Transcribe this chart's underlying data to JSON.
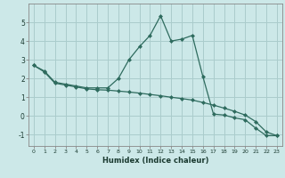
{
  "xlabel": "Humidex (Indice chaleur)",
  "background_color": "#cce8e8",
  "line_color": "#2e6b5e",
  "grid_color": "#aacccc",
  "xlim": [
    -0.5,
    23.5
  ],
  "ylim": [
    -1.6,
    6.0
  ],
  "yticks": [
    -1,
    0,
    1,
    2,
    3,
    4,
    5
  ],
  "xticks": [
    0,
    1,
    2,
    3,
    4,
    5,
    6,
    7,
    8,
    9,
    10,
    11,
    12,
    13,
    14,
    15,
    16,
    17,
    18,
    19,
    20,
    21,
    22,
    23
  ],
  "line1_x": [
    0,
    1,
    2,
    3,
    4,
    5,
    6,
    7,
    8,
    9,
    10,
    11,
    12,
    13,
    14,
    15,
    16,
    17,
    18,
    19,
    20,
    21,
    22,
    23
  ],
  "line1_y": [
    2.7,
    2.4,
    1.8,
    1.7,
    1.6,
    1.5,
    1.5,
    1.5,
    2.0,
    3.0,
    3.7,
    4.3,
    5.35,
    4.0,
    4.1,
    4.3,
    2.1,
    0.1,
    0.05,
    -0.1,
    -0.2,
    -0.65,
    -1.05,
    -1.05
  ],
  "line2_x": [
    0,
    1,
    2,
    3,
    4,
    5,
    6,
    7,
    8,
    9,
    10,
    11,
    12,
    13,
    14,
    15,
    16,
    17,
    18,
    19,
    20,
    21,
    22,
    23
  ],
  "line2_y": [
    2.7,
    2.35,
    1.75,
    1.65,
    1.55,
    1.45,
    1.4,
    1.38,
    1.33,
    1.28,
    1.22,
    1.15,
    1.08,
    1.0,
    0.93,
    0.85,
    0.72,
    0.58,
    0.42,
    0.25,
    0.05,
    -0.3,
    -0.85,
    -1.05
  ]
}
